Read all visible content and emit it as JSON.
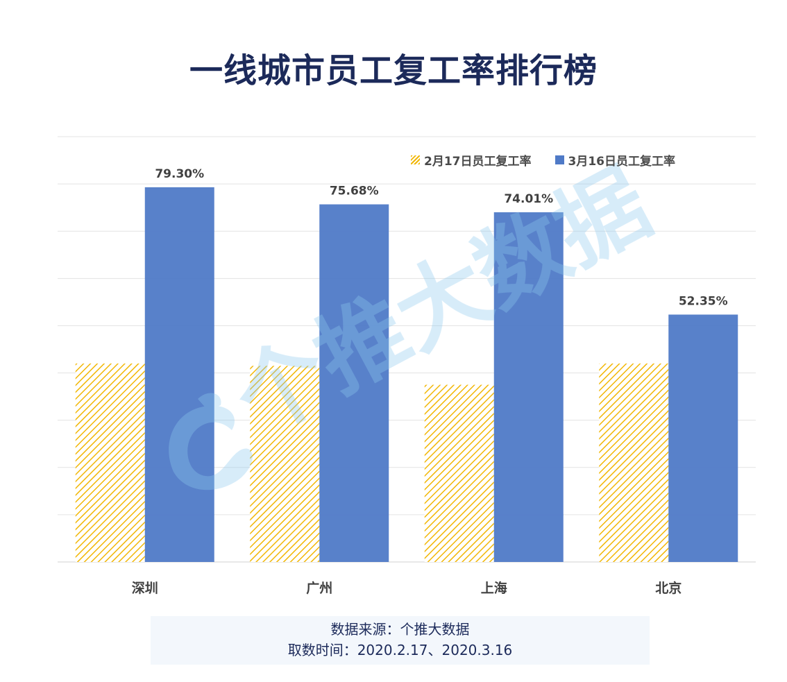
{
  "title": "一线城市员工复工率排行榜",
  "watermark": "个推大数据",
  "source": {
    "line1": "数据来源：个推大数据",
    "line2": "取数时间：2020.2.17、2020.3.16"
  },
  "colors": {
    "title": "#1c2a5a",
    "series_feb": "#f2b705",
    "series_mar": "#4f7ac7",
    "watermark": "#8ec9ee"
  },
  "chart_data": {
    "type": "bar",
    "categories": [
      "深圳",
      "广州",
      "上海",
      "北京"
    ],
    "series": [
      {
        "name": "2月17日员工复工率",
        "values": [
          42.0,
          41.5,
          37.5,
          42.0
        ],
        "style": "hatched",
        "labels": [
          "",
          "",
          "",
          ""
        ]
      },
      {
        "name": "3月16日员工复工率",
        "values": [
          79.3,
          75.68,
          74.01,
          52.35
        ],
        "style": "solid",
        "labels": [
          "79.30%",
          "75.68%",
          "74.01%",
          "52.35%"
        ]
      }
    ],
    "ylim": [
      0,
      90
    ],
    "gridlines": true,
    "y_tick_labels_shown": false,
    "legend_position": "top-right"
  }
}
